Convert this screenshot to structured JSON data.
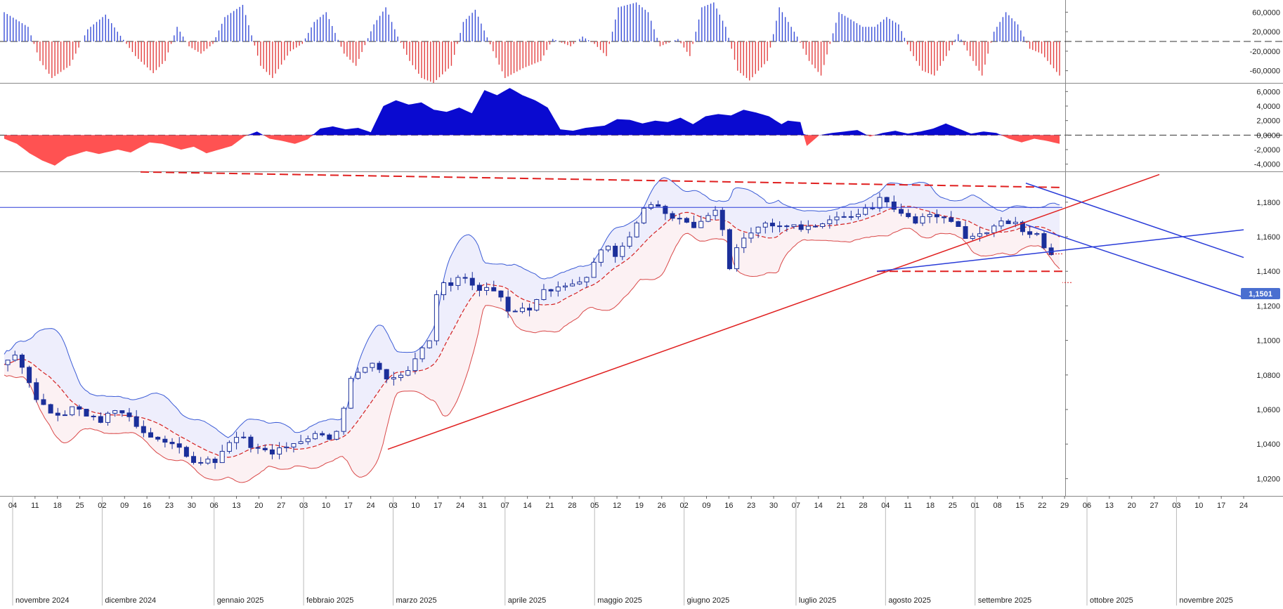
{
  "chart_data": {
    "type": "candlestick",
    "colors": {
      "up": "#ffffff",
      "down": "#1b2f9a",
      "hist_pos": "#3a4fd8",
      "hist_neg": "#e34141",
      "area_pos": "#0a0ad0",
      "area_neg": "#ff5252",
      "bb_upper": "#3b5bd6",
      "bb_lower": "#d94848",
      "bb_mid": "#d42020",
      "trend_red": "#e02020",
      "trend_blue": "#2a3cd8"
    },
    "last_price_label": "1,1501",
    "price_axis": {
      "ticks": [
        "1,1800",
        "1,1600",
        "1,1400",
        "1,1200",
        "1,1000",
        "1,0800",
        "1,0600",
        "1,0400",
        "1,0200"
      ],
      "range": [
        1.01,
        1.197
      ]
    },
    "hist_axis": {
      "ticks": [
        "60,0000",
        "20,0000",
        "-20,0000",
        "-60,0000"
      ],
      "range": [
        -85,
        85
      ]
    },
    "area_axis": {
      "ticks": [
        "6,0000",
        "4,0000",
        "2,0000",
        "0,0000",
        "-2,0000",
        "-4,0000"
      ],
      "range": [
        -5,
        7
      ]
    },
    "day_labels": [
      "04",
      "11",
      "18",
      "25",
      "02",
      "09",
      "16",
      "23",
      "30",
      "06",
      "13",
      "20",
      "27",
      "03",
      "10",
      "17",
      "24",
      "03",
      "10",
      "17",
      "24",
      "31",
      "07",
      "14",
      "21",
      "28",
      "05",
      "12",
      "19",
      "26",
      "02",
      "09",
      "16",
      "23",
      "30",
      "07",
      "14",
      "21",
      "28",
      "04",
      "11",
      "18",
      "25",
      "01",
      "08",
      "15",
      "22",
      "29",
      "06",
      "13",
      "20",
      "27",
      "03",
      "10",
      "17",
      "24"
    ],
    "month_labels": [
      "novembre 2024",
      "dicembre 2024",
      "gennaio 2025",
      "febbraio 2025",
      "marzo 2025",
      "aprile 2025",
      "maggio 2025",
      "giugno 2025",
      "luglio 2025",
      "agosto 2025",
      "settembre 2025",
      "ottobre 2025",
      "novembre 2025"
    ],
    "start_date": "2024-11-01",
    "closes": [
      [
        0,
        1.086
      ],
      [
        6,
        1.093
      ],
      [
        10,
        1.082
      ],
      [
        14,
        1.068
      ],
      [
        20,
        1.06
      ],
      [
        26,
        1.057
      ],
      [
        30,
        1.061
      ],
      [
        36,
        1.056
      ],
      [
        42,
        1.054
      ],
      [
        48,
        1.059
      ],
      [
        54,
        1.056
      ],
      [
        60,
        1.045
      ],
      [
        66,
        1.043
      ],
      [
        72,
        1.041
      ],
      [
        78,
        1.032
      ],
      [
        84,
        1.03
      ],
      [
        90,
        1.031
      ],
      [
        96,
        1.041
      ],
      [
        100,
        1.045
      ],
      [
        106,
        1.038
      ],
      [
        112,
        1.035
      ],
      [
        118,
        1.037
      ],
      [
        124,
        1.041
      ],
      [
        130,
        1.045
      ],
      [
        136,
        1.047
      ],
      [
        140,
        1.042
      ],
      [
        144,
        1.06
      ],
      [
        146,
        1.077
      ],
      [
        150,
        1.083
      ],
      [
        156,
        1.087
      ],
      [
        160,
        1.08
      ],
      [
        164,
        1.078
      ],
      [
        170,
        1.081
      ],
      [
        176,
        1.092
      ],
      [
        180,
        1.1
      ],
      [
        184,
        1.135
      ],
      [
        188,
        1.13
      ],
      [
        192,
        1.138
      ],
      [
        196,
        1.133
      ],
      [
        202,
        1.128
      ],
      [
        206,
        1.13
      ],
      [
        210,
        1.126
      ],
      [
        214,
        1.112
      ],
      [
        218,
        1.119
      ],
      [
        222,
        1.119
      ],
      [
        228,
        1.13
      ],
      [
        232,
        1.127
      ],
      [
        236,
        1.132
      ],
      [
        240,
        1.134
      ],
      [
        246,
        1.137
      ],
      [
        250,
        1.148
      ],
      [
        254,
        1.154
      ],
      [
        258,
        1.15
      ],
      [
        262,
        1.155
      ],
      [
        268,
        1.172
      ],
      [
        272,
        1.179
      ],
      [
        276,
        1.176
      ],
      [
        282,
        1.172
      ],
      [
        286,
        1.169
      ],
      [
        292,
        1.166
      ],
      [
        296,
        1.17
      ],
      [
        300,
        1.174
      ],
      [
        304,
        1.162
      ],
      [
        306,
        1.142
      ],
      [
        310,
        1.157
      ],
      [
        316,
        1.164
      ],
      [
        322,
        1.168
      ],
      [
        328,
        1.168
      ],
      [
        334,
        1.166
      ],
      [
        340,
        1.164
      ],
      [
        346,
        1.169
      ],
      [
        352,
        1.17
      ],
      [
        358,
        1.173
      ],
      [
        362,
        1.176
      ],
      [
        366,
        1.178
      ],
      [
        370,
        1.186
      ],
      [
        374,
        1.177
      ],
      [
        380,
        1.172
      ],
      [
        384,
        1.168
      ],
      [
        388,
        1.174
      ],
      [
        394,
        1.171
      ],
      [
        398,
        1.169
      ],
      [
        402,
        1.165
      ],
      [
        406,
        1.158
      ],
      [
        410,
        1.161
      ],
      [
        414,
        1.164
      ],
      [
        418,
        1.166
      ],
      [
        422,
        1.169
      ],
      [
        426,
        1.167
      ],
      [
        430,
        1.162
      ],
      [
        434,
        1.163
      ],
      [
        436,
        1.16
      ],
      [
        438,
        1.155
      ],
      [
        440,
        1.152
      ],
      [
        442,
        1.1501
      ]
    ],
    "histogram": [
      [
        0,
        60
      ],
      [
        8,
        30
      ],
      [
        12,
        -40
      ],
      [
        16,
        -75
      ],
      [
        22,
        -50
      ],
      [
        28,
        25
      ],
      [
        34,
        55
      ],
      [
        38,
        20
      ],
      [
        44,
        -30
      ],
      [
        50,
        -65
      ],
      [
        54,
        -40
      ],
      [
        58,
        30
      ],
      [
        62,
        -10
      ],
      [
        66,
        -25
      ],
      [
        70,
        -5
      ],
      [
        74,
        50
      ],
      [
        80,
        75
      ],
      [
        86,
        -50
      ],
      [
        90,
        -75
      ],
      [
        96,
        -20
      ],
      [
        100,
        -5
      ],
      [
        104,
        40
      ],
      [
        108,
        60
      ],
      [
        114,
        -25
      ],
      [
        118,
        -50
      ],
      [
        124,
        35
      ],
      [
        128,
        70
      ],
      [
        132,
        10
      ],
      [
        136,
        -40
      ],
      [
        140,
        -75
      ],
      [
        144,
        -85
      ],
      [
        150,
        -50
      ],
      [
        154,
        40
      ],
      [
        158,
        65
      ],
      [
        164,
        -20
      ],
      [
        168,
        -75
      ],
      [
        174,
        -55
      ],
      [
        180,
        -40
      ],
      [
        184,
        5
      ],
      [
        190,
        -10
      ],
      [
        194,
        10
      ],
      [
        198,
        -5
      ],
      [
        202,
        -30
      ],
      [
        206,
        70
      ],
      [
        212,
        80
      ],
      [
        216,
        60
      ],
      [
        220,
        -10
      ],
      [
        226,
        5
      ],
      [
        230,
        -30
      ],
      [
        234,
        70
      ],
      [
        238,
        80
      ],
      [
        242,
        30
      ],
      [
        246,
        -60
      ],
      [
        250,
        -80
      ],
      [
        256,
        -40
      ],
      [
        260,
        70
      ],
      [
        266,
        10
      ],
      [
        270,
        -40
      ],
      [
        274,
        -70
      ],
      [
        280,
        60
      ],
      [
        284,
        45
      ],
      [
        288,
        30
      ],
      [
        292,
        30
      ],
      [
        296,
        50
      ],
      [
        300,
        35
      ],
      [
        304,
        -20
      ],
      [
        308,
        -60
      ],
      [
        312,
        -70
      ],
      [
        316,
        -30
      ],
      [
        320,
        15
      ],
      [
        324,
        -30
      ],
      [
        328,
        -70
      ],
      [
        332,
        20
      ],
      [
        336,
        60
      ],
      [
        340,
        35
      ],
      [
        344,
        -15
      ],
      [
        348,
        -25
      ],
      [
        352,
        -55
      ],
      [
        354,
        -70
      ]
    ],
    "area_osc": [
      [
        0,
        -0.5
      ],
      [
        4,
        -1.2
      ],
      [
        8,
        -2.5
      ],
      [
        12,
        -3.5
      ],
      [
        16,
        -4.2
      ],
      [
        20,
        -3.0
      ],
      [
        26,
        -2.2
      ],
      [
        30,
        -2.6
      ],
      [
        36,
        -2.0
      ],
      [
        40,
        -2.4
      ],
      [
        46,
        -1.0
      ],
      [
        50,
        -1.2
      ],
      [
        56,
        -2.0
      ],
      [
        60,
        -1.6
      ],
      [
        64,
        -2.5
      ],
      [
        68,
        -2.0
      ],
      [
        72,
        -1.5
      ],
      [
        76,
        -0.2
      ],
      [
        80,
        0.5
      ],
      [
        84,
        -0.5
      ],
      [
        88,
        -0.8
      ],
      [
        92,
        -1.2
      ],
      [
        96,
        -0.6
      ],
      [
        100,
        0.9
      ],
      [
        104,
        1.2
      ],
      [
        108,
        0.8
      ],
      [
        112,
        1.0
      ],
      [
        116,
        0.4
      ],
      [
        120,
        4.0
      ],
      [
        124,
        4.8
      ],
      [
        128,
        4.2
      ],
      [
        132,
        4.5
      ],
      [
        136,
        3.5
      ],
      [
        140,
        3.2
      ],
      [
        144,
        3.8
      ],
      [
        148,
        3.0
      ],
      [
        152,
        6.2
      ],
      [
        156,
        5.5
      ],
      [
        160,
        6.5
      ],
      [
        164,
        5.5
      ],
      [
        168,
        4.8
      ],
      [
        172,
        3.8
      ],
      [
        176,
        0.8
      ],
      [
        180,
        0.6
      ],
      [
        184,
        1.0
      ],
      [
        190,
        1.3
      ],
      [
        194,
        2.2
      ],
      [
        198,
        2.1
      ],
      [
        202,
        1.6
      ],
      [
        206,
        2.0
      ],
      [
        210,
        1.8
      ],
      [
        214,
        2.4
      ],
      [
        218,
        1.5
      ],
      [
        222,
        2.6
      ],
      [
        226,
        2.9
      ],
      [
        230,
        2.7
      ],
      [
        234,
        3.5
      ],
      [
        238,
        3.1
      ],
      [
        242,
        2.6
      ],
      [
        246,
        1.5
      ],
      [
        248,
        2.0
      ],
      [
        252,
        1.8
      ],
      [
        254,
        -1.5
      ],
      [
        258,
        0.0
      ],
      [
        262,
        0.3
      ],
      [
        266,
        0.5
      ],
      [
        270,
        0.7
      ],
      [
        274,
        -0.2
      ],
      [
        278,
        0.3
      ],
      [
        282,
        0.6
      ],
      [
        286,
        0.2
      ],
      [
        290,
        0.5
      ],
      [
        294,
        0.9
      ],
      [
        298,
        1.6
      ],
      [
        302,
        0.9
      ],
      [
        306,
        0.2
      ],
      [
        310,
        0.5
      ],
      [
        314,
        0.3
      ],
      [
        318,
        -0.5
      ],
      [
        322,
        -1.0
      ],
      [
        326,
        -0.5
      ],
      [
        330,
        -0.8
      ],
      [
        334,
        -1.2
      ]
    ]
  }
}
